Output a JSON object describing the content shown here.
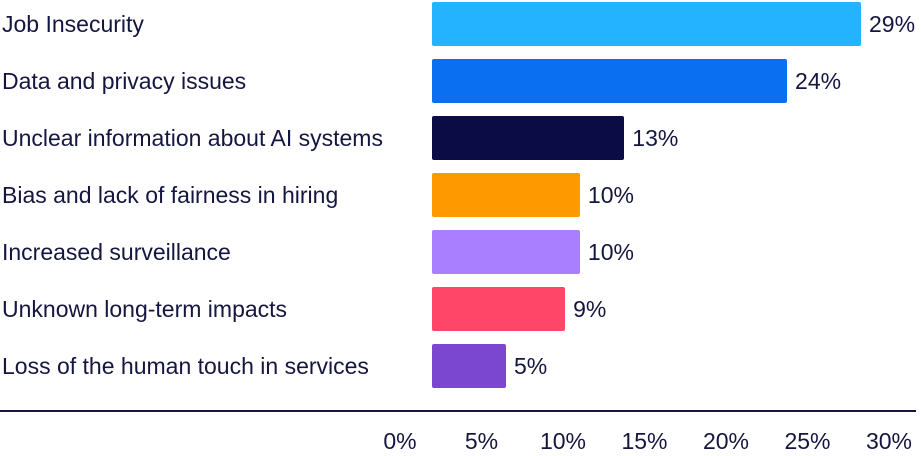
{
  "chart_data": {
    "type": "bar",
    "orientation": "horizontal",
    "title": "",
    "xlabel": "",
    "ylabel": "",
    "categories": [
      "Job Insecurity",
      "Data and privacy issues",
      "Unclear information about AI systems",
      "Bias and lack of fairness in hiring",
      "Increased surveillance",
      "Unknown long-term impacts",
      "Loss of the human touch in services"
    ],
    "values": [
      29,
      24,
      13,
      10,
      10,
      9,
      5
    ],
    "value_labels": [
      "29%",
      "24%",
      "13%",
      "10%",
      "10%",
      "9%",
      "5%"
    ],
    "colors": [
      "#24b4ff",
      "#0a6ff0",
      "#0b0b45",
      "#ff9900",
      "#a97fff",
      "#ff4668",
      "#7b47d0"
    ],
    "xlim": [
      0,
      30
    ],
    "xticks": [
      0,
      5,
      10,
      15,
      20,
      25,
      30
    ],
    "xtick_labels": [
      "0%",
      "5%",
      "10%",
      "15%",
      "20%",
      "25%",
      "30%"
    ],
    "grid": false,
    "legend": "none"
  }
}
